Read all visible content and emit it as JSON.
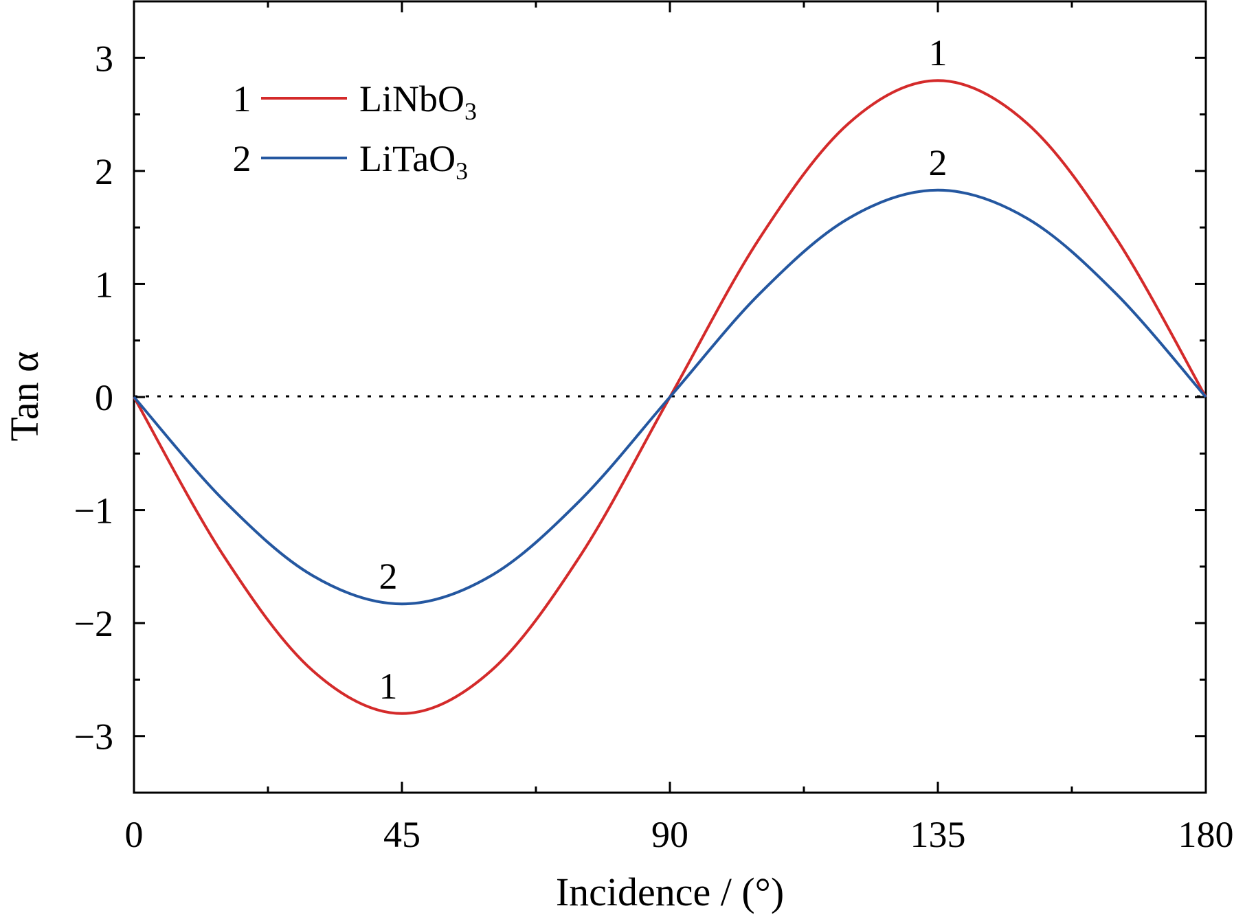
{
  "chart_data": {
    "type": "line",
    "xlabel": "Incidence / (°)",
    "ylabel": "Tan α",
    "xlim": [
      0,
      180
    ],
    "ylim": [
      -3.5,
      3.5
    ],
    "x_ticks": [
      0,
      45,
      90,
      135,
      180
    ],
    "x_tick_labels": [
      "0",
      "45",
      "90",
      "135",
      "180"
    ],
    "x_minor_ticks": [
      22.5,
      67.5,
      112.5,
      157.5
    ],
    "y_ticks": [
      -3,
      -2,
      -1,
      0,
      1,
      2,
      3
    ],
    "y_tick_labels": [
      "−3",
      "−2",
      "−1",
      "0",
      "1",
      "2",
      "3"
    ],
    "y_minor_ticks": [
      -2.5,
      -1.5,
      -0.5,
      0.5,
      1.5,
      2.5
    ],
    "grid": false,
    "zero_line": "dotted",
    "legend_position": "top-left",
    "x": [
      0,
      15,
      30,
      45,
      60,
      75,
      90,
      105,
      120,
      135,
      150,
      165,
      180
    ],
    "series": [
      {
        "id": "1",
        "name": "LiNbO",
        "name_subscript": "3",
        "color": "#d42a2a",
        "values": [
          0,
          -1.4,
          -2.42,
          -2.8,
          -2.42,
          -1.4,
          0,
          1.4,
          2.42,
          2.8,
          2.42,
          1.4,
          0
        ]
      },
      {
        "id": "2",
        "name": "LiTaO",
        "name_subscript": "3",
        "color": "#2457a0",
        "values": [
          0,
          -0.91,
          -1.58,
          -1.83,
          -1.58,
          -0.91,
          0,
          0.91,
          1.58,
          1.83,
          1.58,
          0.91,
          0
        ]
      }
    ],
    "annotations": [
      {
        "text": "1",
        "series": "1",
        "x": 135,
        "y": 2.8,
        "placement": "above"
      },
      {
        "text": "2",
        "series": "2",
        "x": 135,
        "y": 1.83,
        "placement": "above"
      },
      {
        "text": "2",
        "series": "2",
        "x": 45,
        "y": -1.83,
        "placement": "above"
      },
      {
        "text": "1",
        "series": "1",
        "x": 45,
        "y": -2.8,
        "placement": "above"
      }
    ]
  }
}
